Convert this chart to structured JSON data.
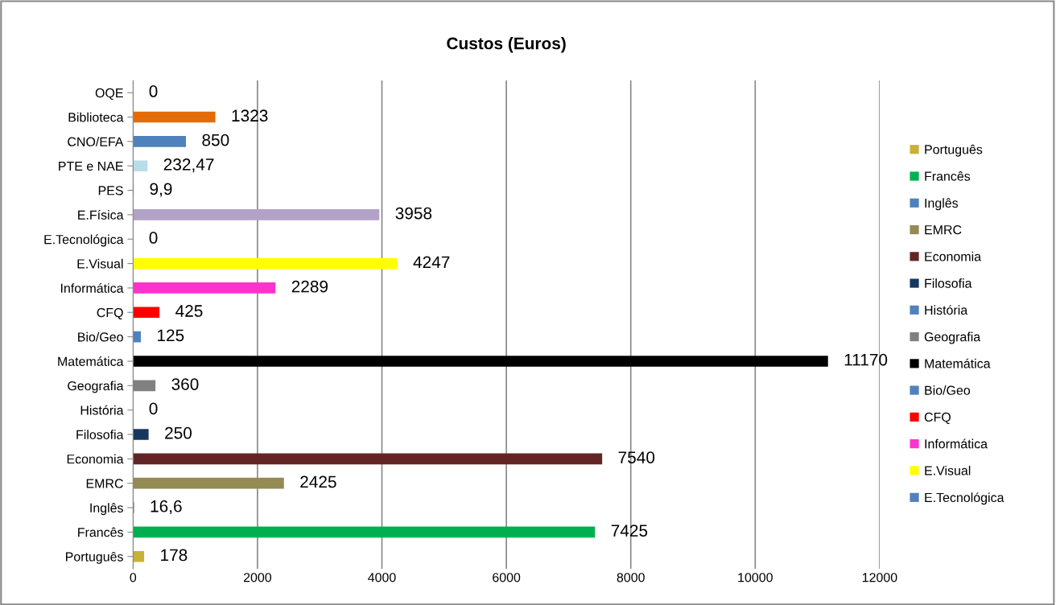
{
  "chart_data": {
    "type": "bar",
    "orientation": "horizontal",
    "title": "Custos (Euros)",
    "categories": [
      "OQE",
      "Biblioteca",
      "CNO/EFA",
      "PTE e NAE",
      "PES",
      "E.Física",
      "E.Tecnológica",
      "E.Visual",
      "Informática",
      "CFQ",
      "Bio/Geo",
      "Matemática",
      "Geografia",
      "História",
      "Filosofia",
      "Economia",
      "EMRC",
      "Inglês",
      "Francês",
      "Português"
    ],
    "series": [
      {
        "name": "Português",
        "color": "#c9b037",
        "values": [
          null,
          null,
          null,
          null,
          null,
          null,
          null,
          null,
          null,
          null,
          null,
          null,
          null,
          null,
          null,
          null,
          null,
          null,
          null,
          178
        ],
        "value_labels": [
          null,
          null,
          null,
          null,
          null,
          null,
          null,
          null,
          null,
          null,
          null,
          null,
          null,
          null,
          null,
          null,
          null,
          null,
          null,
          "178"
        ]
      },
      {
        "name": "Francês",
        "color": "#00b050",
        "values": [
          null,
          null,
          null,
          null,
          null,
          null,
          null,
          null,
          null,
          null,
          null,
          null,
          null,
          null,
          null,
          null,
          null,
          null,
          7425,
          null
        ],
        "value_labels": [
          null,
          null,
          null,
          null,
          null,
          null,
          null,
          null,
          null,
          null,
          null,
          null,
          null,
          null,
          null,
          null,
          null,
          null,
          "7425",
          null
        ]
      },
      {
        "name": "Inglês",
        "color": "#4f81bd",
        "values": [
          null,
          null,
          null,
          null,
          null,
          null,
          null,
          null,
          null,
          null,
          null,
          null,
          null,
          null,
          null,
          null,
          null,
          16.6,
          null,
          null
        ],
        "value_labels": [
          null,
          null,
          null,
          null,
          null,
          null,
          null,
          null,
          null,
          null,
          null,
          null,
          null,
          null,
          null,
          null,
          null,
          "16,6",
          null,
          null
        ]
      },
      {
        "name": "EMRC",
        "color": "#948a54",
        "values": [
          null,
          null,
          null,
          null,
          null,
          null,
          null,
          null,
          null,
          null,
          null,
          null,
          null,
          null,
          null,
          null,
          2425,
          null,
          null,
          null
        ],
        "value_labels": [
          null,
          null,
          null,
          null,
          null,
          null,
          null,
          null,
          null,
          null,
          null,
          null,
          null,
          null,
          null,
          null,
          "2425",
          null,
          null,
          null
        ]
      },
      {
        "name": "Economia",
        "color": "#632523",
        "values": [
          null,
          null,
          null,
          null,
          null,
          null,
          null,
          null,
          null,
          null,
          null,
          null,
          null,
          null,
          null,
          7540,
          null,
          null,
          null,
          null
        ],
        "value_labels": [
          null,
          null,
          null,
          null,
          null,
          null,
          null,
          null,
          null,
          null,
          null,
          null,
          null,
          null,
          null,
          "7540",
          null,
          null,
          null,
          null
        ]
      },
      {
        "name": "Filosofia",
        "color": "#17375e",
        "values": [
          null,
          null,
          null,
          null,
          null,
          null,
          null,
          null,
          null,
          null,
          null,
          null,
          null,
          null,
          250,
          null,
          null,
          null,
          null,
          null
        ],
        "value_labels": [
          null,
          null,
          null,
          null,
          null,
          null,
          null,
          null,
          null,
          null,
          null,
          null,
          null,
          null,
          "250",
          null,
          null,
          null,
          null,
          null
        ]
      },
      {
        "name": "História",
        "color": "#4f81bd",
        "values": [
          null,
          null,
          null,
          null,
          null,
          null,
          null,
          null,
          null,
          null,
          null,
          null,
          null,
          0,
          null,
          null,
          null,
          null,
          null,
          null
        ],
        "value_labels": [
          null,
          null,
          null,
          null,
          null,
          null,
          null,
          null,
          null,
          null,
          null,
          null,
          null,
          "0",
          null,
          null,
          null,
          null,
          null,
          null
        ]
      },
      {
        "name": "Geografia",
        "color": "#808080",
        "values": [
          null,
          null,
          null,
          null,
          null,
          null,
          null,
          null,
          null,
          null,
          null,
          null,
          360,
          null,
          null,
          null,
          null,
          null,
          null,
          null
        ],
        "value_labels": [
          null,
          null,
          null,
          null,
          null,
          null,
          null,
          null,
          null,
          null,
          null,
          null,
          "360",
          null,
          null,
          null,
          null,
          null,
          null,
          null
        ]
      },
      {
        "name": "Matemática",
        "color": "#000000",
        "values": [
          null,
          null,
          null,
          null,
          null,
          null,
          null,
          null,
          null,
          null,
          null,
          11170,
          null,
          null,
          null,
          null,
          null,
          null,
          null,
          null
        ],
        "value_labels": [
          null,
          null,
          null,
          null,
          null,
          null,
          null,
          null,
          null,
          null,
          null,
          "11170",
          null,
          null,
          null,
          null,
          null,
          null,
          null,
          null
        ]
      },
      {
        "name": "Bio/Geo",
        "color": "#4f81bd",
        "values": [
          null,
          null,
          null,
          null,
          null,
          null,
          null,
          null,
          null,
          null,
          125,
          null,
          null,
          null,
          null,
          null,
          null,
          null,
          null,
          null
        ],
        "value_labels": [
          null,
          null,
          null,
          null,
          null,
          null,
          null,
          null,
          null,
          null,
          "125",
          null,
          null,
          null,
          null,
          null,
          null,
          null,
          null,
          null
        ]
      },
      {
        "name": "CFQ",
        "color": "#ff0000",
        "values": [
          null,
          null,
          null,
          null,
          null,
          null,
          null,
          null,
          null,
          425,
          null,
          null,
          null,
          null,
          null,
          null,
          null,
          null,
          null,
          null
        ],
        "value_labels": [
          null,
          null,
          null,
          null,
          null,
          null,
          null,
          null,
          null,
          "425",
          null,
          null,
          null,
          null,
          null,
          null,
          null,
          null,
          null,
          null
        ]
      },
      {
        "name": "Informática",
        "color": "#ff33cc",
        "values": [
          null,
          null,
          null,
          null,
          null,
          null,
          null,
          null,
          2289,
          null,
          null,
          null,
          null,
          null,
          null,
          null,
          null,
          null,
          null,
          null
        ],
        "value_labels": [
          null,
          null,
          null,
          null,
          null,
          null,
          null,
          null,
          "2289",
          null,
          null,
          null,
          null,
          null,
          null,
          null,
          null,
          null,
          null,
          null
        ]
      },
      {
        "name": "E.Visual",
        "color": "#ffff00",
        "values": [
          null,
          null,
          null,
          null,
          null,
          null,
          null,
          4247,
          null,
          null,
          null,
          null,
          null,
          null,
          null,
          null,
          null,
          null,
          null,
          null
        ],
        "value_labels": [
          null,
          null,
          null,
          null,
          null,
          null,
          null,
          "4247",
          null,
          null,
          null,
          null,
          null,
          null,
          null,
          null,
          null,
          null,
          null,
          null
        ]
      },
      {
        "name": "E.Tecnológica",
        "color": "#4f81bd",
        "values": [
          null,
          null,
          null,
          null,
          null,
          null,
          0,
          null,
          null,
          null,
          null,
          null,
          null,
          null,
          null,
          null,
          null,
          null,
          null,
          null
        ],
        "value_labels": [
          null,
          null,
          null,
          null,
          null,
          null,
          "0",
          null,
          null,
          null,
          null,
          null,
          null,
          null,
          null,
          null,
          null,
          null,
          null,
          null
        ]
      },
      {
        "color": "#b3a2c7",
        "values": [
          null,
          null,
          null,
          null,
          null,
          3958,
          null,
          null,
          null,
          null,
          null,
          null,
          null,
          null,
          null,
          null,
          null,
          null,
          null,
          null
        ],
        "value_labels": [
          null,
          null,
          null,
          null,
          null,
          "3958",
          null,
          null,
          null,
          null,
          null,
          null,
          null,
          null,
          null,
          null,
          null,
          null,
          null,
          null
        ]
      },
      {
        "color": "#4f81bd",
        "values": [
          null,
          null,
          null,
          null,
          9.9,
          null,
          null,
          null,
          null,
          null,
          null,
          null,
          null,
          null,
          null,
          null,
          null,
          null,
          null,
          null
        ],
        "value_labels": [
          null,
          null,
          null,
          null,
          "9,9",
          null,
          null,
          null,
          null,
          null,
          null,
          null,
          null,
          null,
          null,
          null,
          null,
          null,
          null,
          null
        ]
      },
      {
        "color": "#b7dde8",
        "values": [
          null,
          null,
          null,
          232.47,
          null,
          null,
          null,
          null,
          null,
          null,
          null,
          null,
          null,
          null,
          null,
          null,
          null,
          null,
          null,
          null
        ],
        "value_labels": [
          null,
          null,
          null,
          "232,47",
          null,
          null,
          null,
          null,
          null,
          null,
          null,
          null,
          null,
          null,
          null,
          null,
          null,
          null,
          null,
          null
        ]
      },
      {
        "color": "#4f81bd",
        "values": [
          null,
          null,
          850,
          null,
          null,
          null,
          null,
          null,
          null,
          null,
          null,
          null,
          null,
          null,
          null,
          null,
          null,
          null,
          null,
          null
        ],
        "value_labels": [
          null,
          null,
          "850",
          null,
          null,
          null,
          null,
          null,
          null,
          null,
          null,
          null,
          null,
          null,
          null,
          null,
          null,
          null,
          null,
          null
        ]
      },
      {
        "color": "#e36c09",
        "values": [
          null,
          1323,
          null,
          null,
          null,
          null,
          null,
          null,
          null,
          null,
          null,
          null,
          null,
          null,
          null,
          null,
          null,
          null,
          null,
          null
        ],
        "value_labels": [
          null,
          "1323",
          null,
          null,
          null,
          null,
          null,
          null,
          null,
          null,
          null,
          null,
          null,
          null,
          null,
          null,
          null,
          null,
          null,
          null
        ]
      },
      {
        "color": "#4f81bd",
        "values": [
          0,
          null,
          null,
          null,
          null,
          null,
          null,
          null,
          null,
          null,
          null,
          null,
          null,
          null,
          null,
          null,
          null,
          null,
          null,
          null
        ],
        "value_labels": [
          "0",
          null,
          null,
          null,
          null,
          null,
          null,
          null,
          null,
          null,
          null,
          null,
          null,
          null,
          null,
          null,
          null,
          null,
          null,
          null
        ]
      }
    ],
    "xlim": [
      0,
      12000
    ],
    "xticks": [
      0,
      2000,
      4000,
      6000,
      8000,
      10000,
      12000
    ],
    "grid": "x",
    "legend": "right"
  }
}
